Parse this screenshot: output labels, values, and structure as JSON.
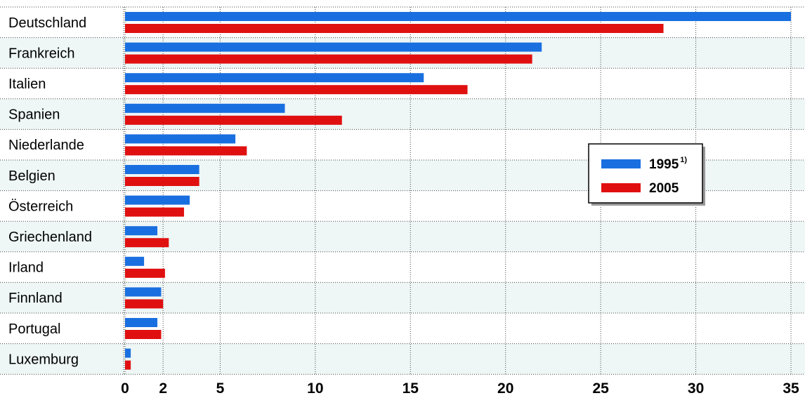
{
  "chart_data": {
    "type": "bar",
    "orientation": "horizontal",
    "categories": [
      "Deutschland",
      "Frankreich",
      "Italien",
      "Spanien",
      "Niederlande",
      "Belgien",
      "Österreich",
      "Griechenland",
      "Irland",
      "Finnland",
      "Portugal",
      "Luxemburg"
    ],
    "series": [
      {
        "name": "1995",
        "name_sup": "1)",
        "color": "#1a6fe0",
        "values": [
          35.0,
          21.9,
          15.7,
          8.4,
          5.8,
          3.9,
          3.4,
          1.7,
          1.0,
          1.9,
          1.7,
          0.3
        ]
      },
      {
        "name": "2005",
        "color": "#e01010",
        "values": [
          28.3,
          21.4,
          18.0,
          11.4,
          6.4,
          3.9,
          3.1,
          2.3,
          2.1,
          2.0,
          1.9,
          0.3
        ]
      }
    ],
    "xticks": [
      0,
      2,
      5,
      10,
      15,
      20,
      25,
      30,
      35
    ],
    "xlim": [
      0,
      35
    ],
    "grid": true,
    "legend_position": "center-right",
    "row_band_color": "#eef6f6"
  }
}
